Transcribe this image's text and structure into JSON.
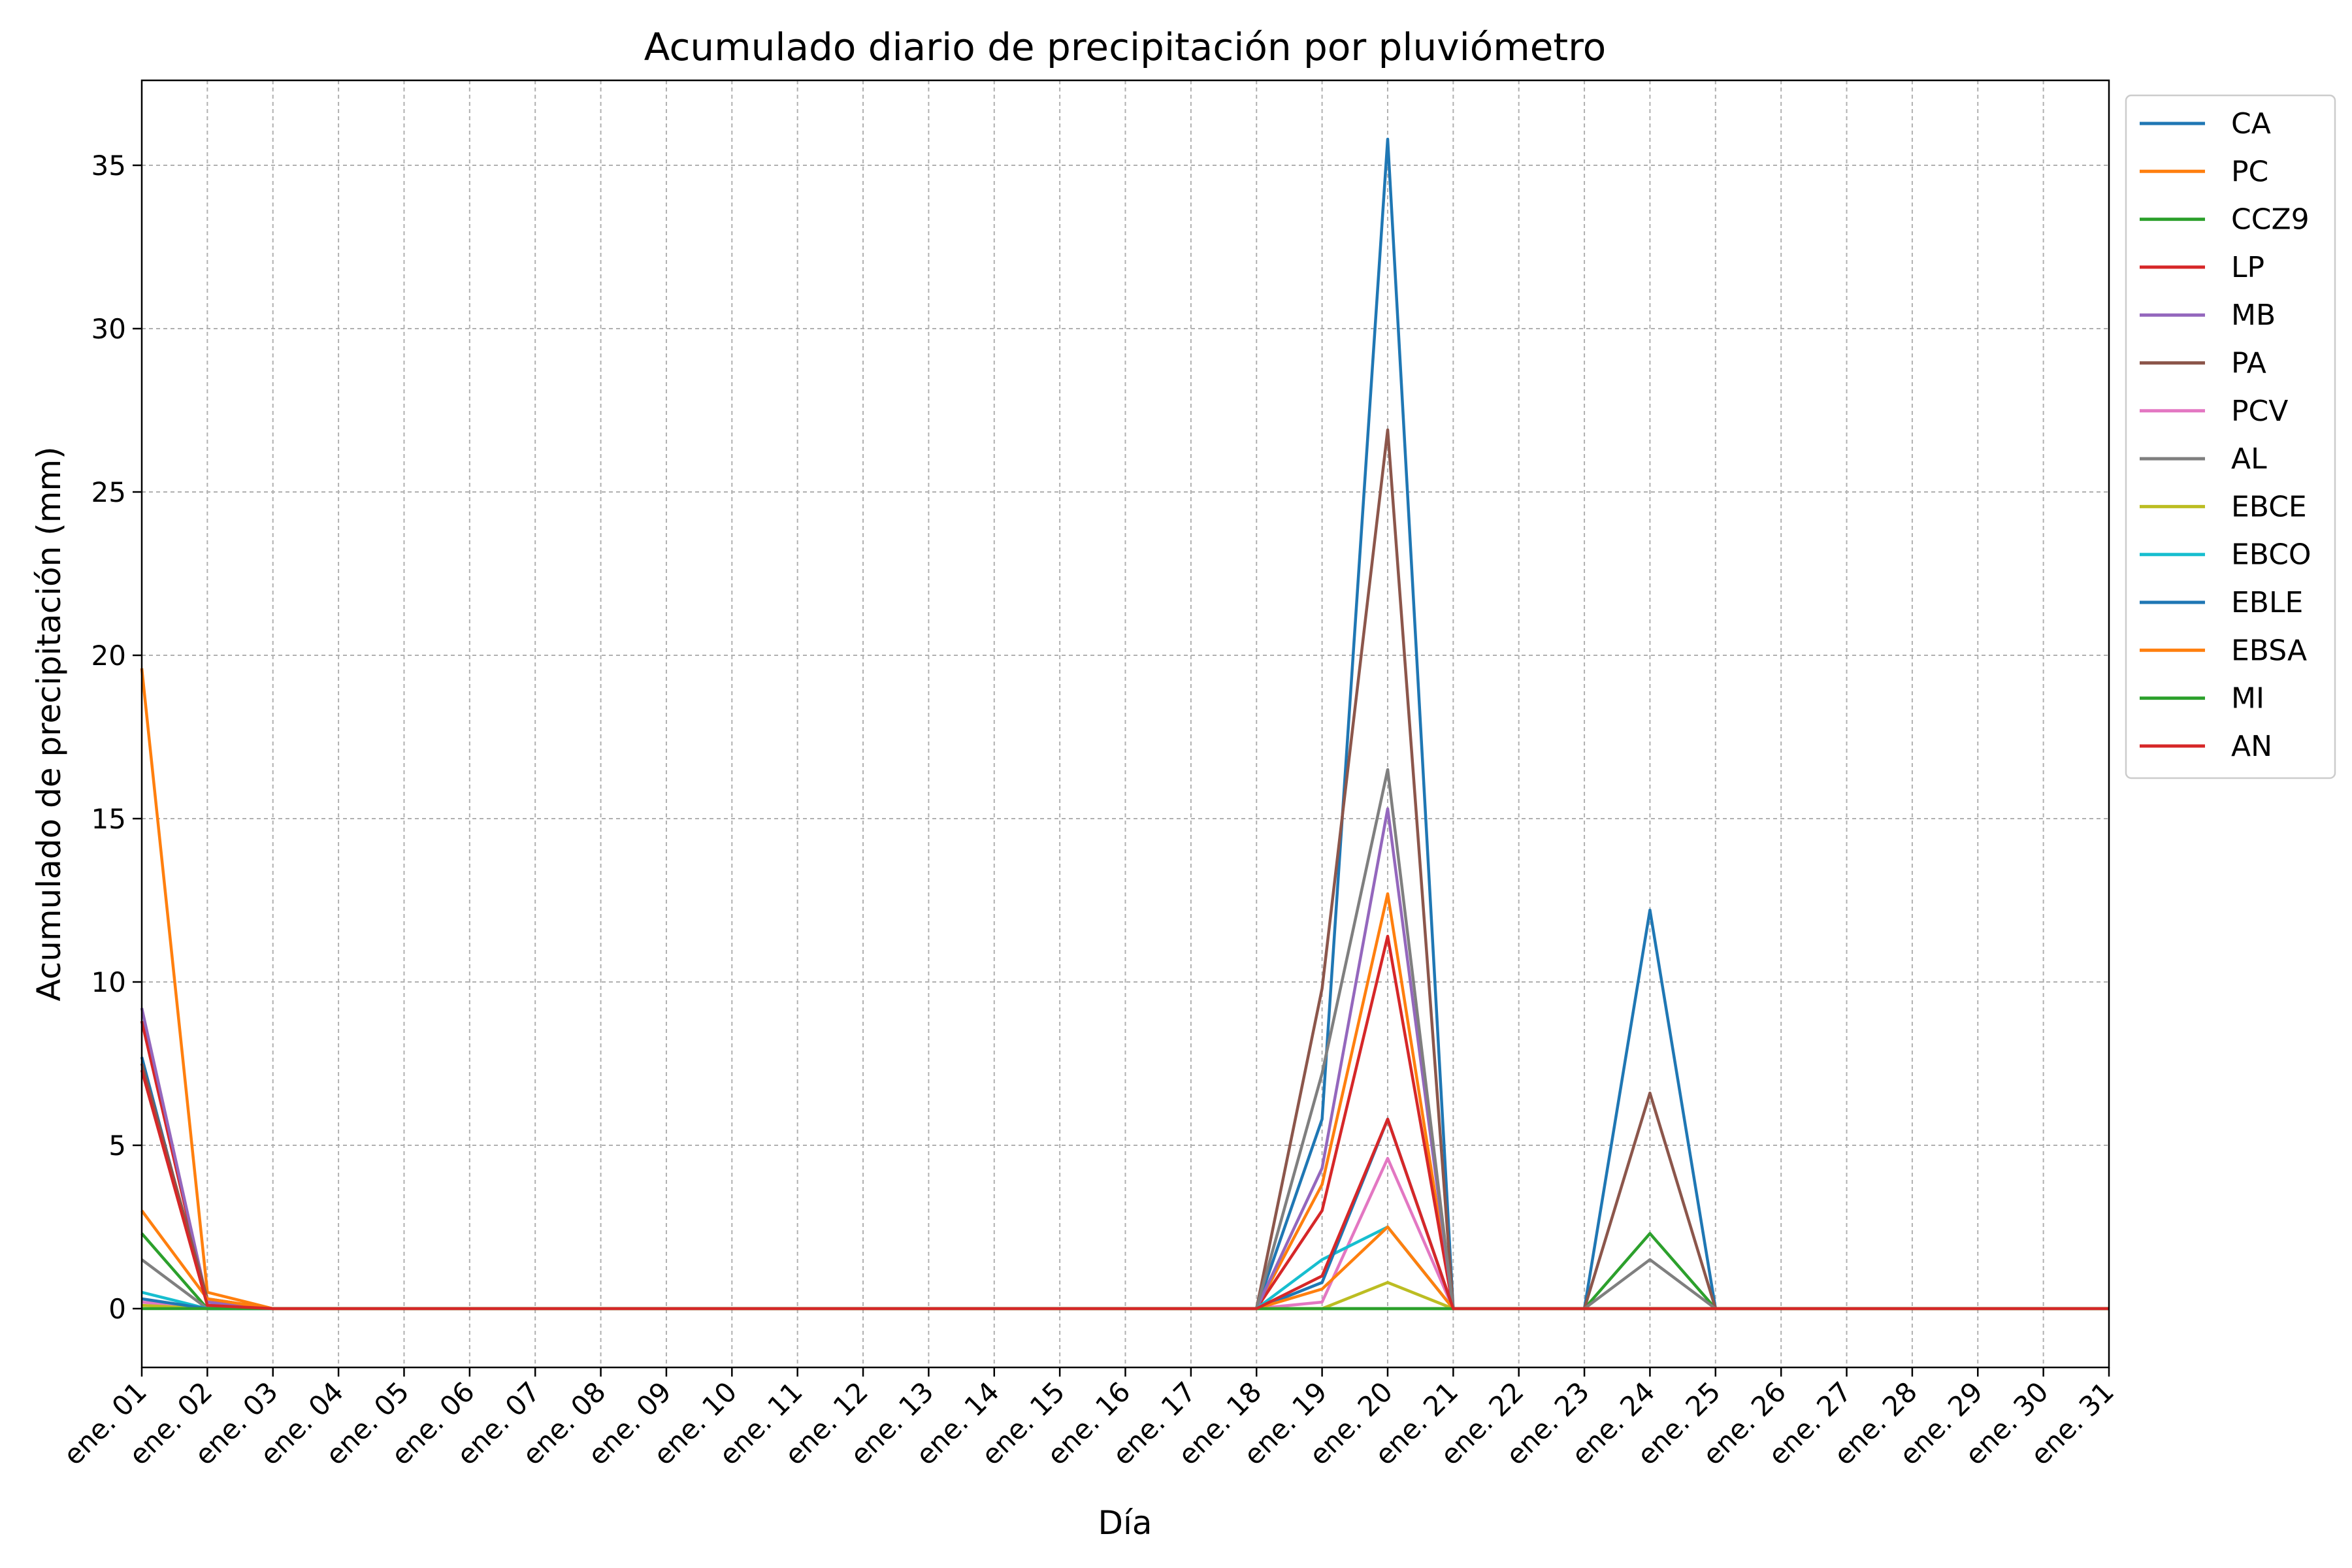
{
  "chart_data": {
    "type": "line",
    "title": "Acumulado diario de precipitación por pluviómetro",
    "xlabel": "Día",
    "ylabel": "Acumulado de precipitación (mm)",
    "ylim": [
      -1.8,
      37.6
    ],
    "yticks": [
      0,
      5,
      10,
      15,
      20,
      25,
      30,
      35
    ],
    "grid": true,
    "legend_position": "right-top-outside",
    "categories": [
      "ene. 01",
      "ene. 02",
      "ene. 03",
      "ene. 04",
      "ene. 05",
      "ene. 06",
      "ene. 07",
      "ene. 08",
      "ene. 09",
      "ene. 10",
      "ene. 11",
      "ene. 12",
      "ene. 13",
      "ene. 14",
      "ene. 15",
      "ene. 16",
      "ene. 17",
      "ene. 18",
      "ene. 19",
      "ene. 20",
      "ene. 21",
      "ene. 22",
      "ene. 23",
      "ene. 24",
      "ene. 25",
      "ene. 26",
      "ene. 27",
      "ene. 28",
      "ene. 29",
      "ene. 30",
      "ene. 31"
    ],
    "series": [
      {
        "name": "CA",
        "color": "#1f77b4",
        "values": [
          7.7,
          0.1,
          0,
          0,
          0,
          0,
          0,
          0,
          0,
          0,
          0,
          0,
          0,
          0,
          0,
          0,
          0,
          0,
          5.8,
          35.8,
          0,
          0,
          0,
          12.2,
          0,
          0,
          0,
          0,
          0,
          0,
          0
        ]
      },
      {
        "name": "PC",
        "color": "#ff7f0e",
        "values": [
          19.6,
          0.5,
          0,
          0,
          0,
          0,
          0,
          0,
          0,
          0,
          0,
          0,
          0,
          0,
          0,
          0,
          0,
          0,
          3.8,
          12.7,
          0,
          0,
          0,
          0,
          0,
          0,
          0,
          0,
          0,
          0,
          0
        ]
      },
      {
        "name": "CCZ9",
        "color": "#2ca02c",
        "values": [
          2.3,
          0,
          0,
          0,
          0,
          0,
          0,
          0,
          0,
          0,
          0,
          0,
          0,
          0,
          0,
          0,
          0,
          0,
          0,
          0,
          0,
          0,
          0,
          2.3,
          0,
          0,
          0,
          0,
          0,
          0,
          0
        ]
      },
      {
        "name": "LP",
        "color": "#d62728",
        "values": [
          8.8,
          0.2,
          0,
          0,
          0,
          0,
          0,
          0,
          0,
          0,
          0,
          0,
          0,
          0,
          0,
          0,
          0,
          0,
          3.0,
          11.4,
          0,
          0,
          0,
          0,
          0,
          0,
          0,
          0,
          0,
          0,
          0
        ]
      },
      {
        "name": "MB",
        "color": "#9467bd",
        "values": [
          9.2,
          0.2,
          0,
          0,
          0,
          0,
          0,
          0,
          0,
          0,
          0,
          0,
          0,
          0,
          0,
          0,
          0,
          0,
          4.3,
          15.3,
          0,
          0,
          0,
          0,
          0,
          0,
          0,
          0,
          0,
          0,
          0
        ]
      },
      {
        "name": "PA",
        "color": "#8c564b",
        "values": [
          7.5,
          0.3,
          0,
          0,
          0,
          0,
          0,
          0,
          0,
          0,
          0,
          0,
          0,
          0,
          0,
          0,
          0,
          0,
          9.8,
          26.9,
          0,
          0,
          0,
          6.6,
          0,
          0,
          0,
          0,
          0,
          0,
          0
        ]
      },
      {
        "name": "PCV",
        "color": "#e377c2",
        "values": [
          0.2,
          0,
          0,
          0,
          0,
          0,
          0,
          0,
          0,
          0,
          0,
          0,
          0,
          0,
          0,
          0,
          0,
          0,
          0.2,
          4.6,
          0,
          0,
          0,
          0,
          0,
          0,
          0,
          0,
          0,
          0,
          0
        ]
      },
      {
        "name": "AL",
        "color": "#7f7f7f",
        "values": [
          1.5,
          0,
          0,
          0,
          0,
          0,
          0,
          0,
          0,
          0,
          0,
          0,
          0,
          0,
          0,
          0,
          0,
          0,
          7.2,
          16.5,
          0,
          0,
          0,
          1.5,
          0,
          0,
          0,
          0,
          0,
          0,
          0
        ]
      },
      {
        "name": "EBCE",
        "color": "#bcbd22",
        "values": [
          0.1,
          0,
          0,
          0,
          0,
          0,
          0,
          0,
          0,
          0,
          0,
          0,
          0,
          0,
          0,
          0,
          0,
          0,
          0,
          0.8,
          0,
          0,
          0,
          0,
          0,
          0,
          0,
          0,
          0,
          0,
          0
        ]
      },
      {
        "name": "EBCO",
        "color": "#17becf",
        "values": [
          0.5,
          0,
          0,
          0,
          0,
          0,
          0,
          0,
          0,
          0,
          0,
          0,
          0,
          0,
          0,
          0,
          0,
          0,
          1.5,
          2.5,
          0,
          0,
          0,
          0,
          0,
          0,
          0,
          0,
          0,
          0,
          0
        ]
      },
      {
        "name": "EBLE",
        "color": "#1f77b4",
        "values": [
          0.3,
          0,
          0,
          0,
          0,
          0,
          0,
          0,
          0,
          0,
          0,
          0,
          0,
          0,
          0,
          0,
          0,
          0,
          0.8,
          5.8,
          0,
          0,
          0,
          0,
          0,
          0,
          0,
          0,
          0,
          0,
          0
        ]
      },
      {
        "name": "EBSA",
        "color": "#ff7f0e",
        "values": [
          3.0,
          0.3,
          0,
          0,
          0,
          0,
          0,
          0,
          0,
          0,
          0,
          0,
          0,
          0,
          0,
          0,
          0,
          0,
          0.6,
          2.5,
          0,
          0,
          0,
          0,
          0,
          0,
          0,
          0,
          0,
          0,
          0
        ]
      },
      {
        "name": "MI",
        "color": "#2ca02c",
        "values": [
          0,
          0,
          0,
          0,
          0,
          0,
          0,
          0,
          0,
          0,
          0,
          0,
          0,
          0,
          0,
          0,
          0,
          0,
          0,
          0,
          0,
          0,
          0,
          0,
          0,
          0,
          0,
          0,
          0,
          0,
          0
        ]
      },
      {
        "name": "AN",
        "color": "#d62728",
        "values": [
          7.3,
          0.1,
          0,
          0,
          0,
          0,
          0,
          0,
          0,
          0,
          0,
          0,
          0,
          0,
          0,
          0,
          0,
          0,
          1.0,
          5.8,
          0,
          0,
          0,
          0,
          0,
          0,
          0,
          0,
          0,
          0,
          0
        ]
      }
    ]
  }
}
